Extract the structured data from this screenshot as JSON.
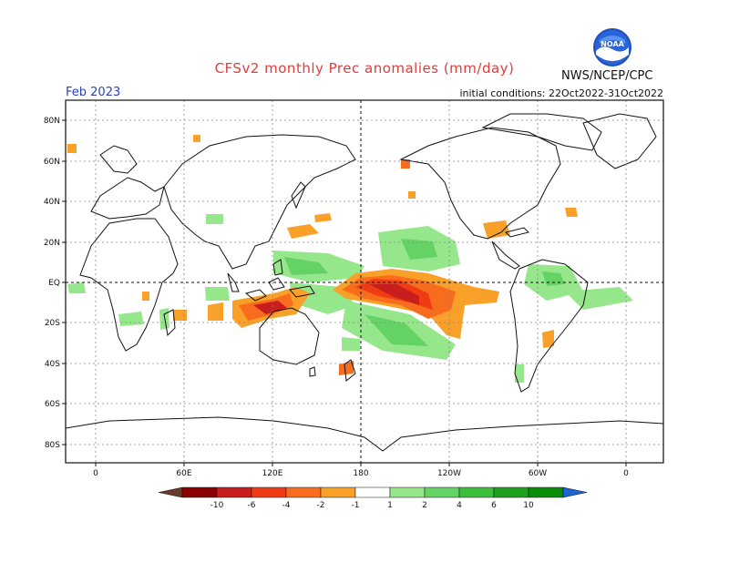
{
  "header": {
    "title": "CFSv2 monthly Prec anomalies (mm/day)",
    "month": "Feb 2023",
    "initial_conditions": "initial conditions: 22Oct2022-31Oct2022",
    "agency": "NWS/NCEP/CPC",
    "logo_text": "NOAA"
  },
  "map": {
    "lat_labels": [
      "80N",
      "60N",
      "40N",
      "20N",
      "EQ",
      "20S",
      "40S",
      "60S",
      "80S"
    ],
    "lon_labels": [
      "0",
      "60E",
      "120E",
      "180",
      "120W",
      "60W",
      "0"
    ]
  },
  "legend": {
    "labels": [
      "-10",
      "-6",
      "-4",
      "-2",
      "-1",
      "1",
      "2",
      "4",
      "6",
      "10"
    ],
    "colors": {
      "below_min": "#6b3a2a",
      "dry": [
        "#8b0000",
        "#c81e1e",
        "#f03c14",
        "#f86c1e",
        "#f8a028"
      ],
      "neutral": "#ffffff",
      "wet": [
        "#96e68c",
        "#64d264",
        "#3cbe3c",
        "#1ea01e",
        "#0a8c0a"
      ],
      "above_max": "#1e64d2"
    }
  }
}
